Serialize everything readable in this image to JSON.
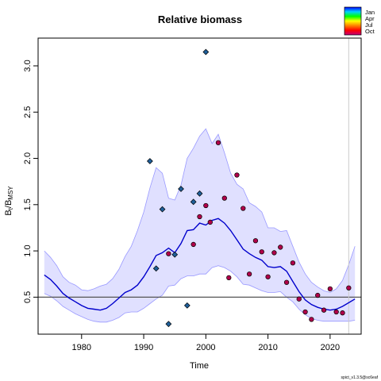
{
  "chart_data": {
    "type": "line",
    "title": "Relative biomass",
    "xlabel": "Time",
    "ylabel_main": "B",
    "ylabel_sub1": "t",
    "ylabel_mid": "/B",
    "ylabel_sub2": "MSY",
    "xlim": [
      1973,
      2025
    ],
    "ylim": [
      0.1,
      3.3
    ],
    "x_ticks": [
      1980,
      1990,
      2000,
      2010,
      2020
    ],
    "y_ticks": [
      0.5,
      1.0,
      1.5,
      2.0,
      2.5,
      3.0
    ],
    "x_tick_labels": [
      "1980",
      "1990",
      "2000",
      "2010",
      "2020"
    ],
    "y_tick_labels": [
      "0.5",
      "1.0",
      "1.5",
      "2.0",
      "2.5",
      "3.0"
    ],
    "reference_line_y": 0.5,
    "vertical_line_x": 2023,
    "footnote": "spict_v1.3.5@sc6eaf",
    "legend": {
      "labels": [
        "Jan",
        "Apr",
        "Jul",
        "Oct"
      ],
      "gradient_colors": [
        "#0000ff",
        "#00d0ff",
        "#00ff00",
        "#ffff00",
        "#ff8000",
        "#ff0000",
        "#c0007a"
      ],
      "placement": "top-right"
    },
    "colors": {
      "line": "#0000cc",
      "band_fill": "#e0e0ff",
      "band_edge": "#9999ff",
      "ref_line": "#555555",
      "vline": "#cccccc",
      "index1_fill": "#1f5f9a",
      "index2_fill": "#b0004a"
    },
    "series": [
      {
        "kind": "estimate",
        "x": [
          1974,
          1975,
          1976,
          1977,
          1978,
          1979,
          1980,
          1981,
          1982,
          1983,
          1984,
          1985,
          1986,
          1987,
          1988,
          1989,
          1990,
          1991,
          1992,
          1993,
          1994,
          1995,
          1996,
          1997,
          1998,
          1999,
          2000,
          2001,
          2002,
          2003,
          2004,
          2005,
          2006,
          2007,
          2008,
          2009,
          2010,
          2011,
          2012,
          2013,
          2014,
          2015,
          2016,
          2017,
          2018,
          2019,
          2020,
          2021,
          2022,
          2023,
          2024
        ],
        "y": [
          0.74,
          0.69,
          0.62,
          0.54,
          0.49,
          0.45,
          0.41,
          0.38,
          0.37,
          0.36,
          0.38,
          0.43,
          0.49,
          0.55,
          0.58,
          0.63,
          0.72,
          0.83,
          0.95,
          0.98,
          1.03,
          0.98,
          1.08,
          1.22,
          1.23,
          1.3,
          1.28,
          1.33,
          1.35,
          1.3,
          1.22,
          1.12,
          1.02,
          0.97,
          0.93,
          0.9,
          0.83,
          0.82,
          0.83,
          0.78,
          0.67,
          0.56,
          0.47,
          0.42,
          0.39,
          0.37,
          0.36,
          0.37,
          0.4,
          0.44,
          0.48
        ]
      },
      {
        "kind": "ci_upper",
        "x": [
          1974,
          1975,
          1976,
          1977,
          1978,
          1979,
          1980,
          1981,
          1982,
          1983,
          1984,
          1985,
          1986,
          1987,
          1988,
          1989,
          1990,
          1991,
          1992,
          1993,
          1994,
          1995,
          1996,
          1997,
          1998,
          1999,
          2000,
          2001,
          2002,
          2003,
          2004,
          2005,
          2006,
          2007,
          2008,
          2009,
          2010,
          2011,
          2012,
          2013,
          2014,
          2015,
          2016,
          2017,
          2018,
          2019,
          2020,
          2021,
          2022,
          2023,
          2024
        ],
        "y": [
          1.0,
          0.93,
          0.84,
          0.72,
          0.66,
          0.63,
          0.58,
          0.57,
          0.59,
          0.62,
          0.64,
          0.7,
          0.8,
          0.94,
          1.05,
          1.22,
          1.42,
          1.68,
          1.9,
          1.84,
          1.57,
          1.55,
          1.71,
          2.0,
          2.11,
          2.24,
          2.32,
          2.16,
          2.26,
          2.06,
          1.84,
          1.72,
          1.67,
          1.52,
          1.48,
          1.42,
          1.25,
          1.25,
          1.21,
          1.22,
          1.05,
          0.88,
          0.75,
          0.66,
          0.61,
          0.57,
          0.55,
          0.59,
          0.68,
          0.85,
          1.05
        ]
      },
      {
        "kind": "ci_lower",
        "x": [
          1974,
          1975,
          1976,
          1977,
          1978,
          1979,
          1980,
          1981,
          1982,
          1983,
          1984,
          1985,
          1986,
          1987,
          1988,
          1989,
          1990,
          1991,
          1992,
          1993,
          1994,
          1995,
          1996,
          1997,
          1998,
          1999,
          2000,
          2001,
          2002,
          2003,
          2004,
          2005,
          2006,
          2007,
          2008,
          2009,
          2010,
          2011,
          2012,
          2013,
          2014,
          2015,
          2016,
          2017,
          2018,
          2019,
          2020,
          2021,
          2022,
          2023,
          2024
        ],
        "y": [
          0.54,
          0.51,
          0.46,
          0.4,
          0.36,
          0.32,
          0.29,
          0.26,
          0.24,
          0.23,
          0.23,
          0.25,
          0.28,
          0.33,
          0.34,
          0.34,
          0.38,
          0.43,
          0.48,
          0.52,
          0.62,
          0.63,
          0.7,
          0.73,
          0.73,
          0.75,
          0.75,
          0.82,
          0.84,
          0.82,
          0.78,
          0.72,
          0.64,
          0.63,
          0.6,
          0.57,
          0.55,
          0.55,
          0.56,
          0.5,
          0.45,
          0.37,
          0.31,
          0.27,
          0.25,
          0.24,
          0.24,
          0.24,
          0.24,
          0.24,
          0.25
        ]
      },
      {
        "kind": "index1_points",
        "marker": "diamond",
        "x": [
          1991,
          1992,
          1993,
          1994,
          1995,
          1996,
          1997,
          1998,
          1999,
          2000
        ],
        "y": [
          1.97,
          0.81,
          1.45,
          0.21,
          0.96,
          1.67,
          0.41,
          1.53,
          1.62,
          3.15
        ]
      },
      {
        "kind": "index2_points",
        "marker": "circle",
        "x": [
          1994,
          1998,
          1999,
          2000,
          2000.7,
          2002,
          2003,
          2003.7,
          2005,
          2006,
          2007,
          2008,
          2009,
          2010,
          2011,
          2012,
          2013,
          2014,
          2015,
          2016,
          2017,
          2018,
          2019,
          2020,
          2021,
          2022,
          2023
        ],
        "y": [
          0.97,
          1.07,
          1.37,
          1.49,
          1.31,
          2.17,
          1.57,
          0.71,
          1.82,
          1.46,
          0.75,
          1.11,
          0.99,
          0.72,
          0.98,
          1.04,
          0.66,
          0.87,
          0.48,
          0.34,
          0.26,
          0.52,
          0.36,
          0.59,
          0.34,
          0.33,
          0.6
        ]
      }
    ]
  }
}
